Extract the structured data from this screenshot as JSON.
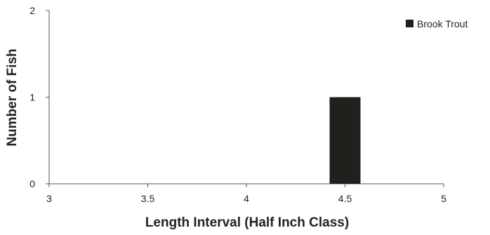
{
  "chart_data": {
    "type": "bar",
    "title": "",
    "xlabel": "Length Interval (Half Inch Class)",
    "ylabel": "Number of Fish",
    "xlim": [
      3,
      5
    ],
    "ylim": [
      0,
      2
    ],
    "x_ticks": [
      3,
      3.5,
      4,
      4.5,
      5
    ],
    "x_tick_labels": [
      "3",
      "3.5",
      "4",
      "4.5",
      "5"
    ],
    "y_ticks": [
      0,
      1,
      2
    ],
    "y_tick_labels": [
      "0",
      "1",
      "2"
    ],
    "grid": false,
    "legend_position": "top-right",
    "series": [
      {
        "name": "Brook Trout",
        "color": "#1e211c",
        "points": [
          {
            "x": 4.5,
            "value": 1
          }
        ]
      }
    ]
  }
}
